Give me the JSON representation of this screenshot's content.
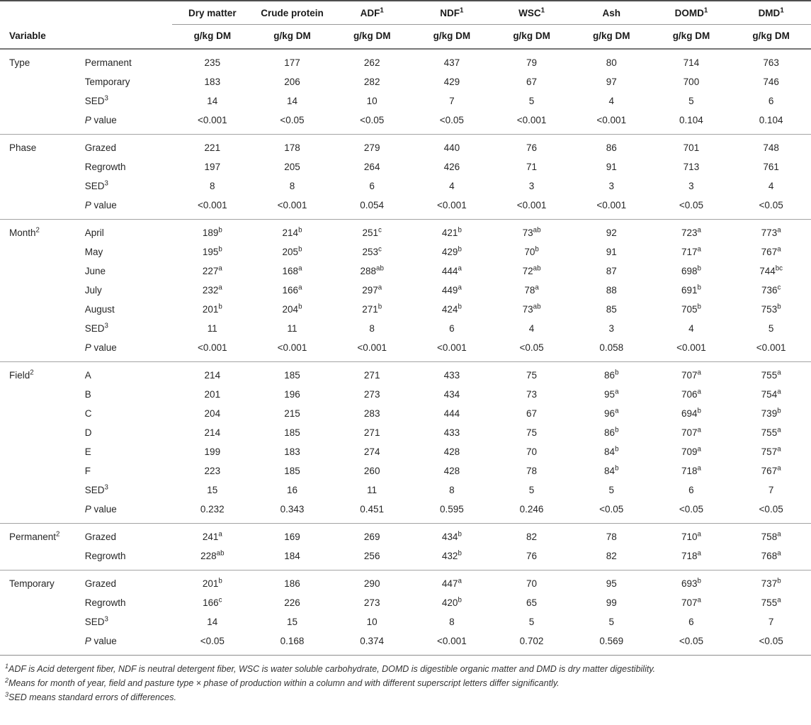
{
  "table": {
    "variable_header": "Variable",
    "columns": [
      {
        "label": "Dry matter",
        "unit": "g/kg DM"
      },
      {
        "label": "Crude protein",
        "unit": "g/kg DM"
      },
      {
        "label": "ADF^1",
        "unit": "g/kg DM"
      },
      {
        "label": "NDF^1",
        "unit": "g/kg DM"
      },
      {
        "label": "WSC^1",
        "unit": "g/kg DM"
      },
      {
        "label": "Ash",
        "unit": "g/kg DM"
      },
      {
        "label": "DOMD^1",
        "unit": "g/kg DM"
      },
      {
        "label": "DMD^1",
        "unit": "g/kg DM"
      }
    ],
    "sections": [
      {
        "group": "Type",
        "rows": [
          {
            "label": "Permanent",
            "values": [
              "235",
              "177",
              "262",
              "437",
              "79",
              "80",
              "714",
              "763"
            ]
          },
          {
            "label": "Temporary",
            "values": [
              "183",
              "206",
              "282",
              "429",
              "67",
              "97",
              "700",
              "746"
            ]
          },
          {
            "label": "SED^3",
            "values": [
              "14",
              "14",
              "10",
              "7",
              "5",
              "4",
              "5",
              "6"
            ]
          },
          {
            "label": "_P_ value",
            "values": [
              "<0.001",
              "<0.05",
              "<0.05",
              "<0.05",
              "<0.001",
              "<0.001",
              "0.104",
              "0.104"
            ]
          }
        ]
      },
      {
        "group": "Phase",
        "rows": [
          {
            "label": "Grazed",
            "values": [
              "221",
              "178",
              "279",
              "440",
              "76",
              "86",
              "701",
              "748"
            ]
          },
          {
            "label": "Regrowth",
            "values": [
              "197",
              "205",
              "264",
              "426",
              "71",
              "91",
              "713",
              "761"
            ]
          },
          {
            "label": "SED^3",
            "values": [
              "8",
              "8",
              "6",
              "4",
              "3",
              "3",
              "3",
              "4"
            ]
          },
          {
            "label": "_P_ value",
            "values": [
              "<0.001",
              "<0.001",
              "0.054",
              "<0.001",
              "<0.001",
              "<0.001",
              "<0.05",
              "<0.05"
            ]
          }
        ]
      },
      {
        "group": "Month^2",
        "rows": [
          {
            "label": "April",
            "values": [
              "189^b",
              "214^b",
              "251^c",
              "421^b",
              "73^ab",
              "92",
              "723^a",
              "773^a"
            ]
          },
          {
            "label": "May",
            "values": [
              "195^b",
              "205^b",
              "253^c",
              "429^b",
              "70^b",
              "91",
              "717^a",
              "767^a"
            ]
          },
          {
            "label": "June",
            "values": [
              "227^a",
              "168^a",
              "288^ab",
              "444^a",
              "72^ab",
              "87",
              "698^b",
              "744^bc"
            ]
          },
          {
            "label": "July",
            "values": [
              "232^a",
              "166^a",
              "297^a",
              "449^a",
              "78^a",
              "88",
              "691^b",
              "736^c"
            ]
          },
          {
            "label": "August",
            "values": [
              "201^b",
              "204^b",
              "271^b",
              "424^b",
              "73^ab",
              "85",
              "705^b",
              "753^b"
            ]
          },
          {
            "label": "SED^3",
            "values": [
              "11",
              "11",
              "8",
              "6",
              "4",
              "3",
              "4",
              "5"
            ]
          },
          {
            "label": "_P_ value",
            "values": [
              "<0.001",
              "<0.001",
              "<0.001",
              "<0.001",
              "<0.05",
              "0.058",
              "<0.001",
              "<0.001"
            ]
          }
        ]
      },
      {
        "group": "Field^2",
        "rows": [
          {
            "label": "A",
            "values": [
              "214",
              "185",
              "271",
              "433",
              "75",
              "86^b",
              "707^a",
              "755^a"
            ]
          },
          {
            "label": "B",
            "values": [
              "201",
              "196",
              "273",
              "434",
              "73",
              "95^a",
              "706^a",
              "754^a"
            ]
          },
          {
            "label": "C",
            "values": [
              "204",
              "215",
              "283",
              "444",
              "67",
              "96^a",
              "694^b",
              "739^b"
            ]
          },
          {
            "label": "D",
            "values": [
              "214",
              "185",
              "271",
              "433",
              "75",
              "86^b",
              "707^a",
              "755^a"
            ]
          },
          {
            "label": "E",
            "values": [
              "199",
              "183",
              "274",
              "428",
              "70",
              "84^b",
              "709^a",
              "757^a"
            ]
          },
          {
            "label": "F",
            "values": [
              "223",
              "185",
              "260",
              "428",
              "78",
              "84^b",
              "718^a",
              "767^a"
            ]
          },
          {
            "label": "SED^3",
            "values": [
              "15",
              "16",
              "11",
              "8",
              "5",
              "5",
              "6",
              "7"
            ]
          },
          {
            "label": "_P_ value",
            "values": [
              "0.232",
              "0.343",
              "0.451",
              "0.595",
              "0.246",
              "<0.05",
              "<0.05",
              "<0.05"
            ]
          }
        ]
      },
      {
        "group": "Permanent^2",
        "rows": [
          {
            "label": "Grazed",
            "values": [
              "241^a",
              "169",
              "269",
              "434^b",
              "82",
              "78",
              "710^a",
              "758^a"
            ]
          },
          {
            "label": "Regrowth",
            "values": [
              "228^ab",
              "184",
              "256",
              "432^b",
              "76",
              "82",
              "718^a",
              "768^a"
            ]
          }
        ]
      },
      {
        "group": "Temporary",
        "rows": [
          {
            "label": "Grazed",
            "values": [
              "201^b",
              "186",
              "290",
              "447^a",
              "70",
              "95",
              "693^b",
              "737^b"
            ]
          },
          {
            "label": "Regrowth",
            "values": [
              "166^c",
              "226",
              "273",
              "420^b",
              "65",
              "99",
              "707^a",
              "755^a"
            ]
          },
          {
            "label": "SED^3",
            "values": [
              "14",
              "15",
              "10",
              "8",
              "5",
              "5",
              "6",
              "7"
            ]
          },
          {
            "label": "_P_ value",
            "values": [
              "<0.05",
              "0.168",
              "0.374",
              "<0.001",
              "0.702",
              "0.569",
              "<0.05",
              "<0.05"
            ]
          }
        ]
      }
    ],
    "footnotes": [
      {
        "sup": "1",
        "text": "ADF is Acid detergent fiber, NDF is neutral detergent fiber, WSC is water soluble carbohydrate, DOMD is digestible organic matter and DMD is dry matter digestibility."
      },
      {
        "sup": "2",
        "text": "Means for month of year, field and pasture type × phase of production within a column and with different superscript letters differ significantly."
      },
      {
        "sup": "3",
        "text": "SED means standard errors of differences."
      }
    ]
  }
}
